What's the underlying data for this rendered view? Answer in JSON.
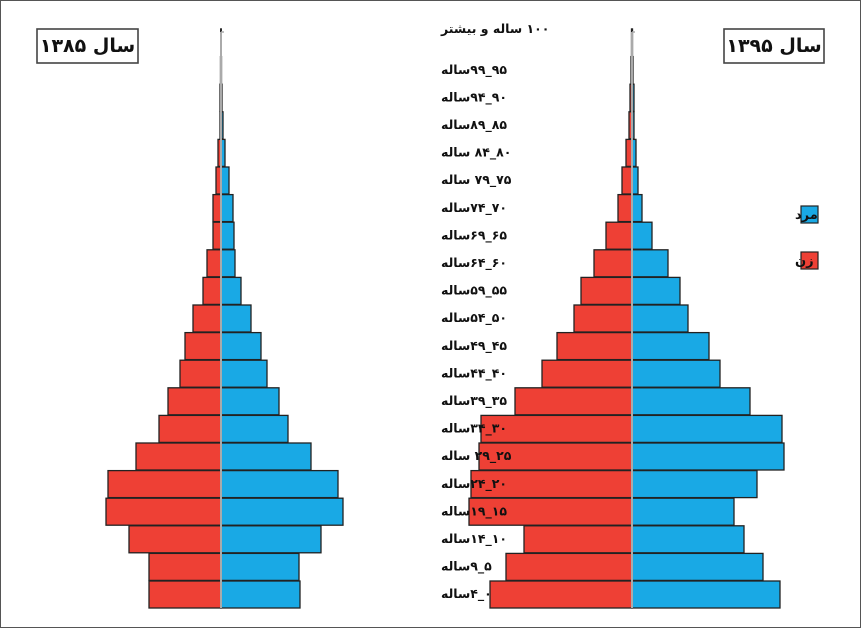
{
  "chart_data": [
    {
      "type": "bar",
      "title": "سال ۱۳۸۵",
      "orientation": "horizontal-population-pyramid",
      "categories": [
        "۰_۴ساله",
        "۵_۹ساله",
        "۱۰_۱۴ساله",
        "۱۵_۱۹ساله",
        "۲۰_۲۴ساله",
        "۲۵_۲۹ ساله",
        "۳۰_۳۴ساله",
        "۳۵_۳۹ساله",
        "۴۰_۴۴ساله",
        "۴۵_۴۹ساله",
        "۵۰_۵۴ساله",
        "۵۵_۵۹ساله",
        "۶۰_۶۴ساله",
        "۶۵_۶۹ساله",
        "۷۰_۷۴ساله",
        "۷۵_۷۹ ساله",
        "۸۰_۸۴ ساله",
        "۸۵_۸۹ساله",
        "۹۰_۹۴ساله",
        "۹۵_۹۹ساله",
        "۱۰۰ ساله و بیشتر"
      ],
      "series": [
        {
          "name": "زن",
          "color": "#ee4035",
          "values": [
            72,
            72,
            92,
            115,
            113,
            85,
            62,
            53,
            41,
            36,
            28,
            18,
            14,
            8,
            8,
            5,
            3,
            1,
            1,
            0.5,
            0.3
          ]
        },
        {
          "name": "مرد",
          "color": "#19a9e5",
          "values": [
            79,
            78,
            100,
            122,
            117,
            90,
            67,
            58,
            46,
            40,
            30,
            20,
            14,
            13,
            12,
            8,
            4,
            2,
            1,
            0.5,
            0.3
          ]
        }
      ]
    },
    {
      "type": "bar",
      "title": "سال ۱۳۹۵",
      "orientation": "horizontal-population-pyramid",
      "categories": [
        "۰_۴ساله",
        "۵_۹ساله",
        "۱۰_۱۴ساله",
        "۱۵_۱۹ساله",
        "۲۰_۲۴ساله",
        "۲۵_۲۹ ساله",
        "۳۰_۳۴ساله",
        "۳۵_۳۹ساله",
        "۴۰_۴۴ساله",
        "۴۵_۴۹ساله",
        "۵۰_۵۴ساله",
        "۵۵_۵۹ساله",
        "۶۰_۶۴ساله",
        "۶۵_۶۹ساله",
        "۷۰_۷۴ساله",
        "۷۵_۷۹ ساله",
        "۸۰_۸۴ ساله",
        "۸۵_۸۹ساله",
        "۹۰_۹۴ساله",
        "۹۵_۹۹ساله",
        "۱۰۰ ساله و بیشتر"
      ],
      "series": [
        {
          "name": "زن",
          "color": "#ee4035",
          "values": [
            142,
            126,
            108,
            163,
            161,
            153,
            151,
            117,
            90,
            75,
            58,
            51,
            38,
            26,
            14,
            10,
            6,
            3,
            2,
            1,
            0.5
          ]
        },
        {
          "name": "مرد",
          "color": "#19a9e5",
          "values": [
            148,
            131,
            112,
            102,
            125,
            152,
            150,
            118,
            88,
            77,
            56,
            48,
            36,
            20,
            10,
            6,
            4,
            2,
            2,
            1,
            0.5
          ]
        }
      ]
    }
  ],
  "legend": [
    {
      "label": "مرد",
      "color": "#19a9e5"
    },
    {
      "label": "زن",
      "color": "#ee4035"
    }
  ]
}
